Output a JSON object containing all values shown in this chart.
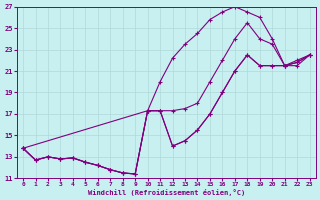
{
  "xlabel": "Windchill (Refroidissement éolien,°C)",
  "bg_color": "#c8f0f0",
  "grid_color": "#b0d8d8",
  "line_color": "#800080",
  "xlim": [
    -0.5,
    23.5
  ],
  "ylim": [
    11,
    27
  ],
  "xticks": [
    0,
    1,
    2,
    3,
    4,
    5,
    6,
    7,
    8,
    9,
    10,
    11,
    12,
    13,
    14,
    15,
    16,
    17,
    18,
    19,
    20,
    21,
    22,
    23
  ],
  "yticks": [
    11,
    13,
    15,
    17,
    19,
    21,
    23,
    25,
    27
  ],
  "lines": [
    {
      "x": [
        0,
        1,
        2,
        3,
        4,
        5,
        6,
        7,
        8,
        9,
        10,
        11,
        12,
        13,
        14,
        15,
        16,
        17,
        18,
        19,
        20,
        21,
        22,
        23
      ],
      "y": [
        13.8,
        12.7,
        13.0,
        12.8,
        12.9,
        12.5,
        12.2,
        11.8,
        11.5,
        11.4,
        17.3,
        20.0,
        22.2,
        23.5,
        24.5,
        25.8,
        26.5,
        27.0,
        26.5,
        26.0,
        24.0,
        21.5,
        22.0,
        22.5
      ]
    },
    {
      "x": [
        0,
        1,
        2,
        3,
        4,
        5,
        6,
        7,
        8,
        9,
        10,
        11,
        12,
        13,
        14,
        15,
        16,
        17,
        18,
        19,
        20,
        21,
        22,
        23
      ],
      "y": [
        13.8,
        12.7,
        13.0,
        12.8,
        12.9,
        12.5,
        12.2,
        11.8,
        11.5,
        11.4,
        17.3,
        17.3,
        17.3,
        17.5,
        18.0,
        20.0,
        22.0,
        24.0,
        25.5,
        24.0,
        23.5,
        21.5,
        21.5,
        22.5
      ]
    },
    {
      "x": [
        0,
        10,
        11,
        12,
        13,
        14,
        15,
        16,
        17,
        18,
        19,
        20,
        21,
        22,
        23
      ],
      "y": [
        13.8,
        17.3,
        17.3,
        14.0,
        14.5,
        15.5,
        17.0,
        19.0,
        21.0,
        22.5,
        21.5,
        21.5,
        21.5,
        21.8,
        22.5
      ]
    },
    {
      "x": [
        0,
        1,
        2,
        3,
        4,
        5,
        6,
        7,
        8,
        9,
        10,
        11,
        12,
        13,
        14,
        15,
        16,
        17,
        18,
        19,
        20,
        21,
        22,
        23
      ],
      "y": [
        13.8,
        12.7,
        13.0,
        12.8,
        12.9,
        12.5,
        12.2,
        11.8,
        11.5,
        11.4,
        17.3,
        17.3,
        14.0,
        14.5,
        15.5,
        17.0,
        19.0,
        21.0,
        22.5,
        21.5,
        21.5,
        21.5,
        21.8,
        22.5
      ]
    }
  ]
}
